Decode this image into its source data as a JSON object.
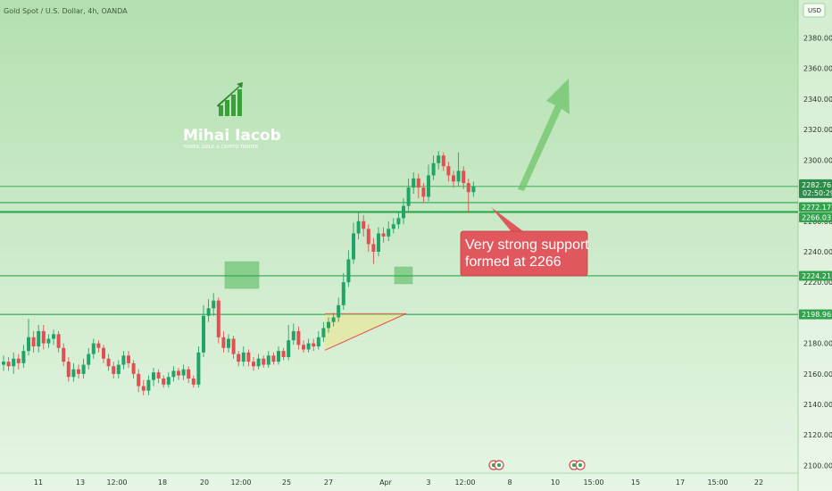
{
  "header": {
    "symbol": "Gold Spot / U.S. Dollar, 4h, OANDA"
  },
  "currency": {
    "label": "USD"
  },
  "brand": {
    "name": "Mihai Iacob",
    "tagline": "FOREX, GOLD & CRYPTO TRADER"
  },
  "annotation": {
    "line1": "Very strong support",
    "line2": "formed at 2266"
  },
  "colors": {
    "up": "#22a368",
    "down": "#e04f52",
    "level_line": "#2aa84a",
    "bg_top": "#b3e0b0",
    "bg_bottom": "#e6f5e4",
    "callout": "#e0585d",
    "zone": "#4fb85a"
  },
  "chart_data": {
    "type": "candlestick",
    "ylim": [
      2095,
      2392
    ],
    "yticks": [
      2100,
      2120,
      2140,
      2160,
      2180,
      2200,
      2220,
      2240,
      2260,
      2280,
      2300,
      2320,
      2340,
      2360,
      2380
    ],
    "xticks": [
      "11",
      "13",
      "12:00",
      "18",
      "20",
      "12:00",
      "25",
      "27",
      "Apr",
      "3",
      "12:00",
      "8",
      "10",
      "15:00",
      "15",
      "17",
      "15:00",
      "22"
    ],
    "levels": [
      {
        "value": 2282.765,
        "label": "2282.765",
        "sublabel": "02:50:29",
        "style": "price"
      },
      {
        "value": 2272.177,
        "label": "2272.177",
        "style": "plain"
      },
      {
        "value": 2266.031,
        "label": "2266.031",
        "style": "strong"
      },
      {
        "value": 2224.215,
        "label": "2224.215",
        "style": "plain"
      },
      {
        "value": 2198.965,
        "label": "2198.965",
        "style": "plain"
      }
    ],
    "series": [
      {
        "o": 2166,
        "c": 2168,
        "h": 2172,
        "l": 2162
      },
      {
        "o": 2168,
        "c": 2165,
        "h": 2171,
        "l": 2162
      },
      {
        "o": 2165,
        "c": 2170,
        "h": 2174,
        "l": 2160
      },
      {
        "o": 2170,
        "c": 2167,
        "h": 2173,
        "l": 2163
      },
      {
        "o": 2167,
        "c": 2175,
        "h": 2179,
        "l": 2164
      },
      {
        "o": 2175,
        "c": 2184,
        "h": 2196,
        "l": 2172
      },
      {
        "o": 2184,
        "c": 2178,
        "h": 2188,
        "l": 2174
      },
      {
        "o": 2178,
        "c": 2188,
        "h": 2192,
        "l": 2174
      },
      {
        "o": 2188,
        "c": 2180,
        "h": 2192,
        "l": 2176
      },
      {
        "o": 2180,
        "c": 2183,
        "h": 2186,
        "l": 2177
      },
      {
        "o": 2183,
        "c": 2186,
        "h": 2189,
        "l": 2179
      },
      {
        "o": 2186,
        "c": 2177,
        "h": 2188,
        "l": 2174
      },
      {
        "o": 2177,
        "c": 2168,
        "h": 2180,
        "l": 2165
      },
      {
        "o": 2168,
        "c": 2158,
        "h": 2171,
        "l": 2155
      },
      {
        "o": 2158,
        "c": 2163,
        "h": 2167,
        "l": 2155
      },
      {
        "o": 2163,
        "c": 2160,
        "h": 2166,
        "l": 2157
      },
      {
        "o": 2160,
        "c": 2166,
        "h": 2170,
        "l": 2157
      },
      {
        "o": 2166,
        "c": 2173,
        "h": 2177,
        "l": 2163
      },
      {
        "o": 2173,
        "c": 2180,
        "h": 2183,
        "l": 2170
      },
      {
        "o": 2180,
        "c": 2177,
        "h": 2182,
        "l": 2174
      },
      {
        "o": 2177,
        "c": 2170,
        "h": 2179,
        "l": 2167
      },
      {
        "o": 2170,
        "c": 2165,
        "h": 2173,
        "l": 2162
      },
      {
        "o": 2165,
        "c": 2160,
        "h": 2168,
        "l": 2157
      },
      {
        "o": 2160,
        "c": 2166,
        "h": 2169,
        "l": 2157
      },
      {
        "o": 2166,
        "c": 2172,
        "h": 2175,
        "l": 2163
      },
      {
        "o": 2172,
        "c": 2167,
        "h": 2175,
        "l": 2164
      },
      {
        "o": 2167,
        "c": 2160,
        "h": 2169,
        "l": 2157
      },
      {
        "o": 2160,
        "c": 2152,
        "h": 2163,
        "l": 2148
      },
      {
        "o": 2152,
        "c": 2149,
        "h": 2156,
        "l": 2146
      },
      {
        "o": 2149,
        "c": 2156,
        "h": 2159,
        "l": 2146
      },
      {
        "o": 2156,
        "c": 2161,
        "h": 2164,
        "l": 2152
      },
      {
        "o": 2161,
        "c": 2157,
        "h": 2163,
        "l": 2154
      },
      {
        "o": 2157,
        "c": 2153,
        "h": 2159,
        "l": 2151
      },
      {
        "o": 2153,
        "c": 2158,
        "h": 2161,
        "l": 2151
      },
      {
        "o": 2158,
        "c": 2162,
        "h": 2165,
        "l": 2155
      },
      {
        "o": 2162,
        "c": 2159,
        "h": 2164,
        "l": 2156
      },
      {
        "o": 2159,
        "c": 2163,
        "h": 2166,
        "l": 2156
      },
      {
        "o": 2163,
        "c": 2157,
        "h": 2165,
        "l": 2154
      },
      {
        "o": 2157,
        "c": 2153,
        "h": 2159,
        "l": 2151
      },
      {
        "o": 2153,
        "c": 2174,
        "h": 2178,
        "l": 2151
      },
      {
        "o": 2174,
        "c": 2198,
        "h": 2205,
        "l": 2171
      },
      {
        "o": 2198,
        "c": 2203,
        "h": 2209,
        "l": 2194
      },
      {
        "o": 2203,
        "c": 2208,
        "h": 2213,
        "l": 2198
      },
      {
        "o": 2208,
        "c": 2184,
        "h": 2210,
        "l": 2180
      },
      {
        "o": 2184,
        "c": 2177,
        "h": 2188,
        "l": 2174
      },
      {
        "o": 2177,
        "c": 2183,
        "h": 2186,
        "l": 2174
      },
      {
        "o": 2183,
        "c": 2173,
        "h": 2185,
        "l": 2170
      },
      {
        "o": 2173,
        "c": 2168,
        "h": 2175,
        "l": 2165
      },
      {
        "o": 2168,
        "c": 2174,
        "h": 2178,
        "l": 2165
      },
      {
        "o": 2174,
        "c": 2168,
        "h": 2176,
        "l": 2165
      },
      {
        "o": 2168,
        "c": 2165,
        "h": 2171,
        "l": 2162
      },
      {
        "o": 2165,
        "c": 2170,
        "h": 2173,
        "l": 2163
      },
      {
        "o": 2170,
        "c": 2166,
        "h": 2172,
        "l": 2164
      },
      {
        "o": 2166,
        "c": 2172,
        "h": 2175,
        "l": 2164
      },
      {
        "o": 2172,
        "c": 2168,
        "h": 2174,
        "l": 2166
      },
      {
        "o": 2168,
        "c": 2175,
        "h": 2178,
        "l": 2166
      },
      {
        "o": 2175,
        "c": 2171,
        "h": 2177,
        "l": 2169
      },
      {
        "o": 2171,
        "c": 2182,
        "h": 2192,
        "l": 2169
      },
      {
        "o": 2182,
        "c": 2188,
        "h": 2193,
        "l": 2179
      },
      {
        "o": 2188,
        "c": 2179,
        "h": 2191,
        "l": 2176
      },
      {
        "o": 2179,
        "c": 2176,
        "h": 2182,
        "l": 2174
      },
      {
        "o": 2176,
        "c": 2180,
        "h": 2183,
        "l": 2174
      },
      {
        "o": 2180,
        "c": 2178,
        "h": 2183,
        "l": 2175
      },
      {
        "o": 2178,
        "c": 2184,
        "h": 2188,
        "l": 2176
      },
      {
        "o": 2184,
        "c": 2190,
        "h": 2194,
        "l": 2181
      },
      {
        "o": 2190,
        "c": 2194,
        "h": 2197,
        "l": 2187
      },
      {
        "o": 2194,
        "c": 2197,
        "h": 2200,
        "l": 2191
      },
      {
        "o": 2197,
        "c": 2205,
        "h": 2210,
        "l": 2194
      },
      {
        "o": 2205,
        "c": 2220,
        "h": 2226,
        "l": 2202
      },
      {
        "o": 2220,
        "c": 2235,
        "h": 2241,
        "l": 2217
      },
      {
        "o": 2235,
        "c": 2252,
        "h": 2259,
        "l": 2232
      },
      {
        "o": 2252,
        "c": 2260,
        "h": 2266,
        "l": 2248
      },
      {
        "o": 2260,
        "c": 2255,
        "h": 2264,
        "l": 2250
      },
      {
        "o": 2255,
        "c": 2245,
        "h": 2258,
        "l": 2240
      },
      {
        "o": 2245,
        "c": 2240,
        "h": 2249,
        "l": 2232
      },
      {
        "o": 2240,
        "c": 2252,
        "h": 2256,
        "l": 2237
      },
      {
        "o": 2252,
        "c": 2250,
        "h": 2256,
        "l": 2246
      },
      {
        "o": 2250,
        "c": 2255,
        "h": 2260,
        "l": 2247
      },
      {
        "o": 2255,
        "c": 2258,
        "h": 2262,
        "l": 2252
      },
      {
        "o": 2258,
        "c": 2262,
        "h": 2266,
        "l": 2255
      },
      {
        "o": 2262,
        "c": 2270,
        "h": 2275,
        "l": 2258
      },
      {
        "o": 2270,
        "c": 2282,
        "h": 2288,
        "l": 2267
      },
      {
        "o": 2282,
        "c": 2288,
        "h": 2292,
        "l": 2278
      },
      {
        "o": 2288,
        "c": 2282,
        "h": 2291,
        "l": 2275
      },
      {
        "o": 2282,
        "c": 2276,
        "h": 2285,
        "l": 2272
      },
      {
        "o": 2276,
        "c": 2290,
        "h": 2297,
        "l": 2273
      },
      {
        "o": 2290,
        "c": 2298,
        "h": 2303,
        "l": 2287
      },
      {
        "o": 2298,
        "c": 2303,
        "h": 2306,
        "l": 2294
      },
      {
        "o": 2303,
        "c": 2296,
        "h": 2305,
        "l": 2293
      },
      {
        "o": 2296,
        "c": 2290,
        "h": 2299,
        "l": 2286
      },
      {
        "o": 2290,
        "c": 2286,
        "h": 2293,
        "l": 2282
      },
      {
        "o": 2286,
        "c": 2293,
        "h": 2305,
        "l": 2283
      },
      {
        "o": 2293,
        "c": 2285,
        "h": 2296,
        "l": 2281
      },
      {
        "o": 2285,
        "c": 2279,
        "h": 2288,
        "l": 2266
      },
      {
        "o": 2279,
        "c": 2283,
        "h": 2286,
        "l": 2276
      }
    ]
  }
}
